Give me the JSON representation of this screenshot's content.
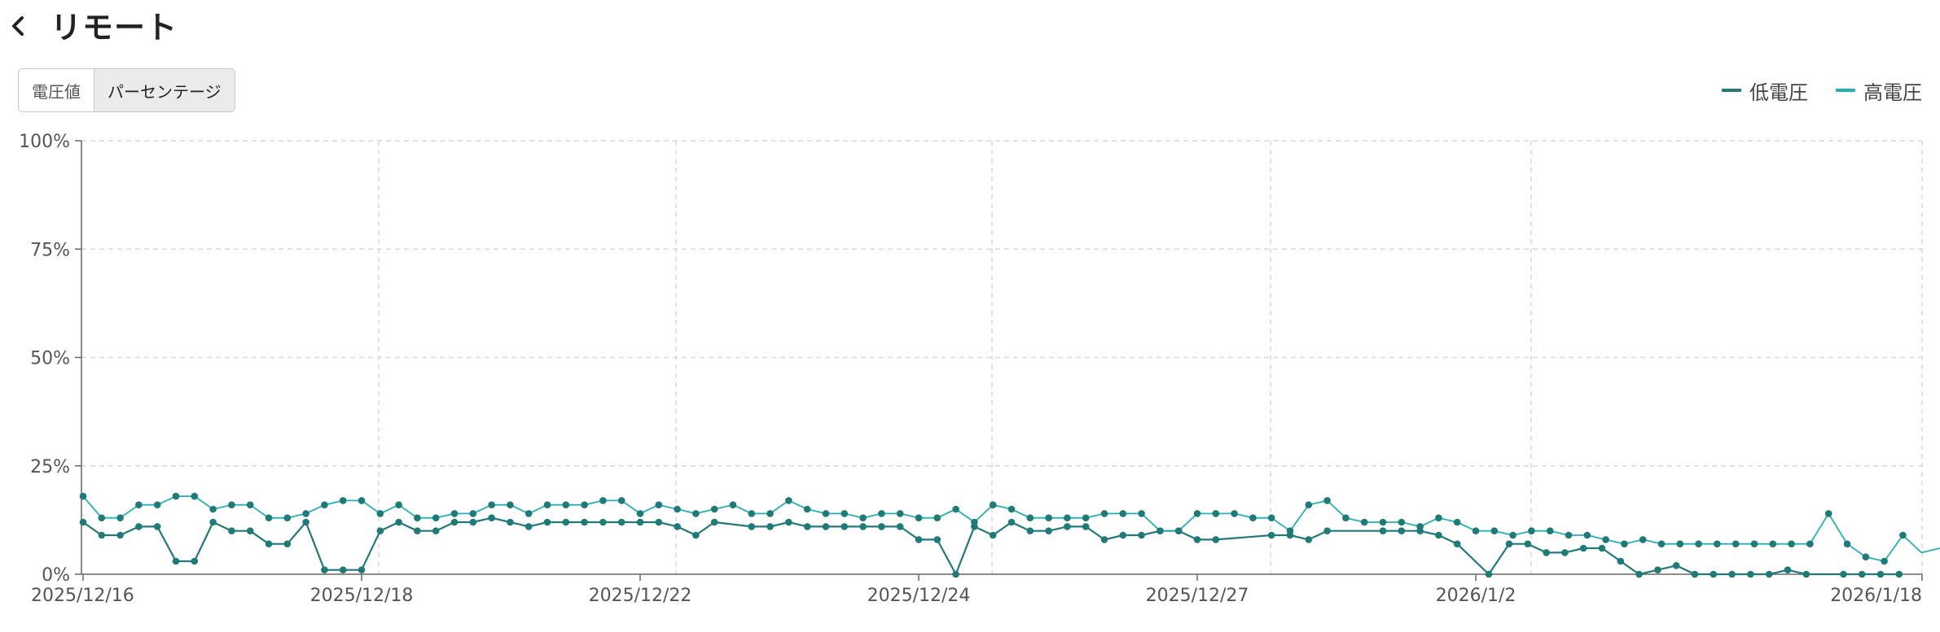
{
  "header": {
    "title": "リモート",
    "back_icon": "chevron-left-icon"
  },
  "toggle": {
    "options": [
      "電圧値",
      "パーセンテージ"
    ],
    "selected": "パーセンテージ"
  },
  "legend": [
    {
      "label": "低電圧",
      "color": "#1f7a78"
    },
    {
      "label": "高電圧",
      "color": "#22b3b0"
    }
  ],
  "chart_data": {
    "type": "line",
    "ylim": [
      0,
      100
    ],
    "y_ticks": [
      0,
      25,
      50,
      75,
      100
    ],
    "y_tick_labels": [
      "0%",
      "25%",
      "50%",
      "75%",
      "100%"
    ],
    "x_range": [
      0,
      99
    ],
    "x_ticks": [
      0,
      15,
      30,
      45,
      60,
      75,
      99
    ],
    "x_tick_labels": [
      "2025/12/16",
      "2025/12/18",
      "2025/12/22",
      "2025/12/24",
      "2025/12/27",
      "2026/1/2",
      "2026/1/18"
    ],
    "grid": true,
    "legend_position": "top-right",
    "series": [
      {
        "name": "低電圧",
        "color": "#1f7a78",
        "points": [
          [
            0,
            12
          ],
          [
            1,
            9
          ],
          [
            2,
            9
          ],
          [
            3,
            11
          ],
          [
            4,
            11
          ],
          [
            5,
            3
          ],
          [
            6,
            3
          ],
          [
            7,
            12
          ],
          [
            8,
            10
          ],
          [
            9,
            10
          ],
          [
            10,
            7
          ],
          [
            11,
            7
          ],
          [
            12,
            12
          ],
          [
            13,
            1
          ],
          [
            14,
            1
          ],
          [
            15,
            1
          ],
          [
            16,
            10
          ],
          [
            17,
            12
          ],
          [
            18,
            10
          ],
          [
            19,
            10
          ],
          [
            20,
            12
          ],
          [
            21,
            12
          ],
          [
            22,
            13
          ],
          [
            23,
            12
          ],
          [
            24,
            11
          ],
          [
            25,
            12
          ],
          [
            26,
            12
          ],
          [
            27,
            12
          ],
          [
            28,
            12
          ],
          [
            29,
            12
          ],
          [
            30,
            12
          ],
          [
            31,
            12
          ],
          [
            32,
            11
          ],
          [
            33,
            9
          ],
          [
            34,
            12
          ],
          [
            36,
            11
          ],
          [
            37,
            11
          ],
          [
            38,
            12
          ],
          [
            39,
            11
          ],
          [
            40,
            11
          ],
          [
            41,
            11
          ],
          [
            42,
            11
          ],
          [
            43,
            11
          ],
          [
            44,
            11
          ],
          [
            45,
            8
          ],
          [
            46,
            8
          ],
          [
            47,
            0
          ],
          [
            48,
            11
          ],
          [
            49,
            9
          ],
          [
            50,
            12
          ],
          [
            51,
            10
          ],
          [
            52,
            10
          ],
          [
            53,
            11
          ],
          [
            54,
            11
          ],
          [
            55,
            8
          ],
          [
            56,
            9
          ],
          [
            57,
            9
          ],
          [
            58,
            10
          ],
          [
            59,
            10
          ],
          [
            60,
            8
          ],
          [
            61,
            8
          ],
          [
            64,
            9
          ],
          [
            65,
            9
          ],
          [
            66,
            8
          ],
          [
            67,
            10
          ],
          [
            70,
            10
          ],
          [
            71,
            10
          ],
          [
            72,
            10
          ],
          [
            73,
            9
          ],
          [
            74,
            7
          ],
          [
            75.7,
            0
          ],
          [
            76.8,
            7
          ],
          [
            77.8,
            7
          ],
          [
            78.8,
            5
          ],
          [
            79.8,
            5
          ],
          [
            80.8,
            6
          ],
          [
            81.8,
            6
          ],
          [
            82.8,
            3
          ],
          [
            83.8,
            0
          ],
          [
            84.8,
            1
          ],
          [
            85.8,
            2
          ],
          [
            86.8,
            0
          ],
          [
            87.8,
            0
          ],
          [
            88.8,
            0
          ],
          [
            89.8,
            0
          ],
          [
            90.8,
            0
          ],
          [
            91.8,
            1
          ],
          [
            92.8,
            0
          ],
          [
            94.8,
            0
          ],
          [
            95.8,
            0
          ],
          [
            96.8,
            0
          ],
          [
            97.8,
            0
          ]
        ],
        "markers": true
      },
      {
        "name": "高電圧",
        "color": "#22b3b0",
        "points": [
          [
            0,
            18
          ],
          [
            1,
            13
          ],
          [
            2,
            13
          ],
          [
            3,
            16
          ],
          [
            4,
            16
          ],
          [
            5,
            18
          ],
          [
            6,
            18
          ],
          [
            7,
            15
          ],
          [
            8,
            16
          ],
          [
            9,
            16
          ],
          [
            10,
            13
          ],
          [
            11,
            13
          ],
          [
            12,
            14
          ],
          [
            13,
            16
          ],
          [
            14,
            17
          ],
          [
            15,
            17
          ],
          [
            16,
            14
          ],
          [
            17,
            16
          ],
          [
            18,
            13
          ],
          [
            19,
            13
          ],
          [
            20,
            14
          ],
          [
            21,
            14
          ],
          [
            22,
            16
          ],
          [
            23,
            16
          ],
          [
            24,
            14
          ],
          [
            25,
            16
          ],
          [
            26,
            16
          ],
          [
            27,
            16
          ],
          [
            28,
            17
          ],
          [
            29,
            17
          ],
          [
            30,
            14
          ],
          [
            31,
            16
          ],
          [
            32,
            15
          ],
          [
            33,
            14
          ],
          [
            34,
            15
          ],
          [
            35,
            16
          ],
          [
            36,
            14
          ],
          [
            37,
            14
          ],
          [
            38,
            17
          ],
          [
            39,
            15
          ],
          [
            40,
            14
          ],
          [
            41,
            14
          ],
          [
            42,
            13
          ],
          [
            43,
            14
          ],
          [
            44,
            14
          ],
          [
            45,
            13
          ],
          [
            46,
            13
          ],
          [
            47,
            15
          ],
          [
            48,
            12
          ],
          [
            49,
            16
          ],
          [
            50,
            15
          ],
          [
            51,
            13
          ],
          [
            52,
            13
          ],
          [
            53,
            13
          ],
          [
            54,
            13
          ],
          [
            55,
            14
          ],
          [
            56,
            14
          ],
          [
            57,
            14
          ],
          [
            58,
            10
          ],
          [
            59,
            10
          ],
          [
            60,
            14
          ],
          [
            61,
            14
          ],
          [
            62,
            14
          ],
          [
            63,
            13
          ],
          [
            64,
            13
          ],
          [
            65,
            10
          ],
          [
            66,
            16
          ],
          [
            67,
            17
          ],
          [
            68,
            13
          ],
          [
            69,
            12
          ],
          [
            70,
            12
          ],
          [
            71,
            12
          ],
          [
            72,
            11
          ],
          [
            73,
            13
          ],
          [
            74,
            12
          ],
          [
            75,
            10
          ],
          [
            76,
            10
          ],
          [
            77,
            9
          ],
          [
            78,
            10
          ],
          [
            79,
            10
          ],
          [
            80,
            9
          ],
          [
            81,
            9
          ],
          [
            82,
            8
          ],
          [
            83,
            7
          ],
          [
            84,
            8
          ],
          [
            85,
            7
          ],
          [
            86,
            7
          ],
          [
            87,
            7
          ],
          [
            88,
            7
          ],
          [
            89,
            7
          ],
          [
            90,
            7
          ],
          [
            91,
            7
          ],
          [
            92,
            7
          ],
          [
            93,
            7
          ],
          [
            94,
            14
          ],
          [
            95,
            7
          ],
          [
            96,
            4
          ],
          [
            97,
            3
          ],
          [
            98,
            9
          ],
          [
            99,
            5
          ],
          [
            100,
            6
          ]
        ],
        "markers_up_to_x": 98
      }
    ]
  }
}
